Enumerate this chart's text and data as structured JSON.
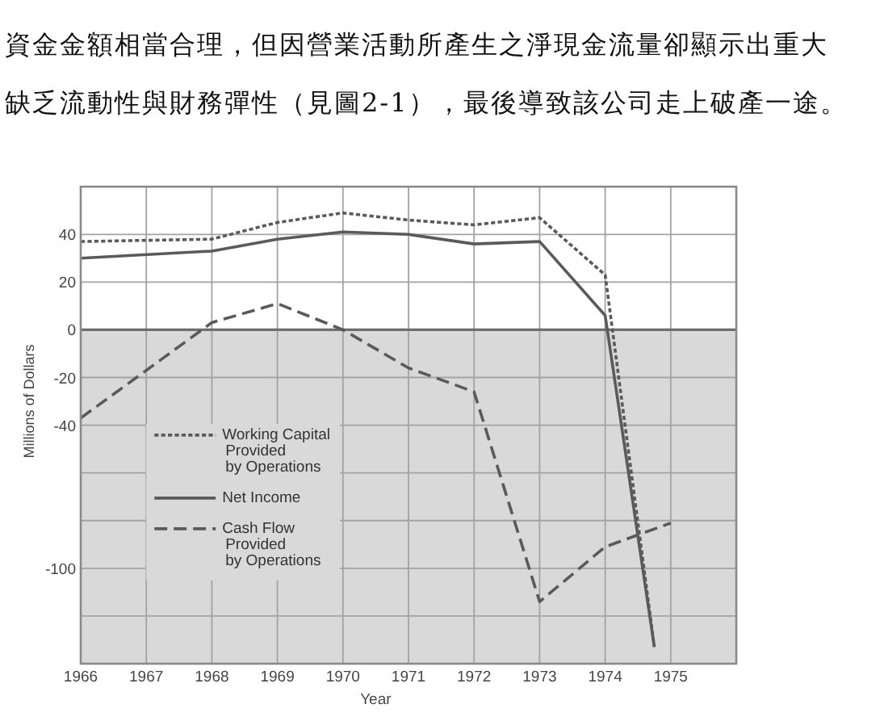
{
  "chart_data": {
    "type": "line",
    "xlabel": "Year",
    "ylabel": "Millions of Dollars",
    "annotations": [
      "資金金額相當合理，但因營業活動所產生之淨現金流量卻顯示出重大",
      "缺乏流動性與財務彈性（見圖2-1），最後導致該公司走上破產一途。"
    ],
    "xlim": [
      1966,
      1976
    ],
    "xticks": [
      1966,
      1967,
      1968,
      1969,
      1970,
      1971,
      1972,
      1973,
      1974,
      1975
    ],
    "ylim": [
      -140,
      60
    ],
    "yticks": [
      40,
      20,
      0,
      -20,
      -40,
      {
        "value": -60,
        "label": null
      },
      {
        "value": -80,
        "label": null
      },
      -100,
      {
        "value": -120,
        "label": null
      }
    ],
    "grid": true,
    "legend": "bottom left",
    "bands": [
      {
        "axis": "y",
        "from": -140,
        "to": 0,
        "color": "#d9d9d9"
      }
    ],
    "ref_lines": [
      {
        "axis": "y",
        "value": 0,
        "color": "#6e6e6e"
      }
    ],
    "series": [
      {
        "name": "Working Capital\nProvided\nby Operations",
        "color": "#5a5a5a",
        "line_style": "dotted",
        "x": [
          1966,
          1968,
          1969,
          1970,
          1971,
          1972,
          1973,
          1974,
          1974.75
        ],
        "values": [
          37,
          38,
          45,
          49,
          46,
          44,
          47,
          23,
          -133
        ]
      },
      {
        "name": "Net Income",
        "color": "#5a5a5a",
        "line_style": "solid",
        "x": [
          1966,
          1968,
          1969,
          1970,
          1971,
          1972,
          1973,
          1974,
          1974.75
        ],
        "values": [
          30,
          33,
          38,
          41,
          40,
          36,
          37,
          6,
          -133
        ]
      },
      {
        "name": "Cash Flow\nProvided\nby Operations",
        "color": "#5a5a5a",
        "line_style": "dashed",
        "x": [
          1966,
          1968,
          1969,
          1970,
          1971,
          1972,
          1973,
          1974,
          1975
        ],
        "values": [
          -37,
          3,
          11,
          0,
          -16,
          -26,
          -114,
          -91,
          -81
        ]
      }
    ]
  }
}
